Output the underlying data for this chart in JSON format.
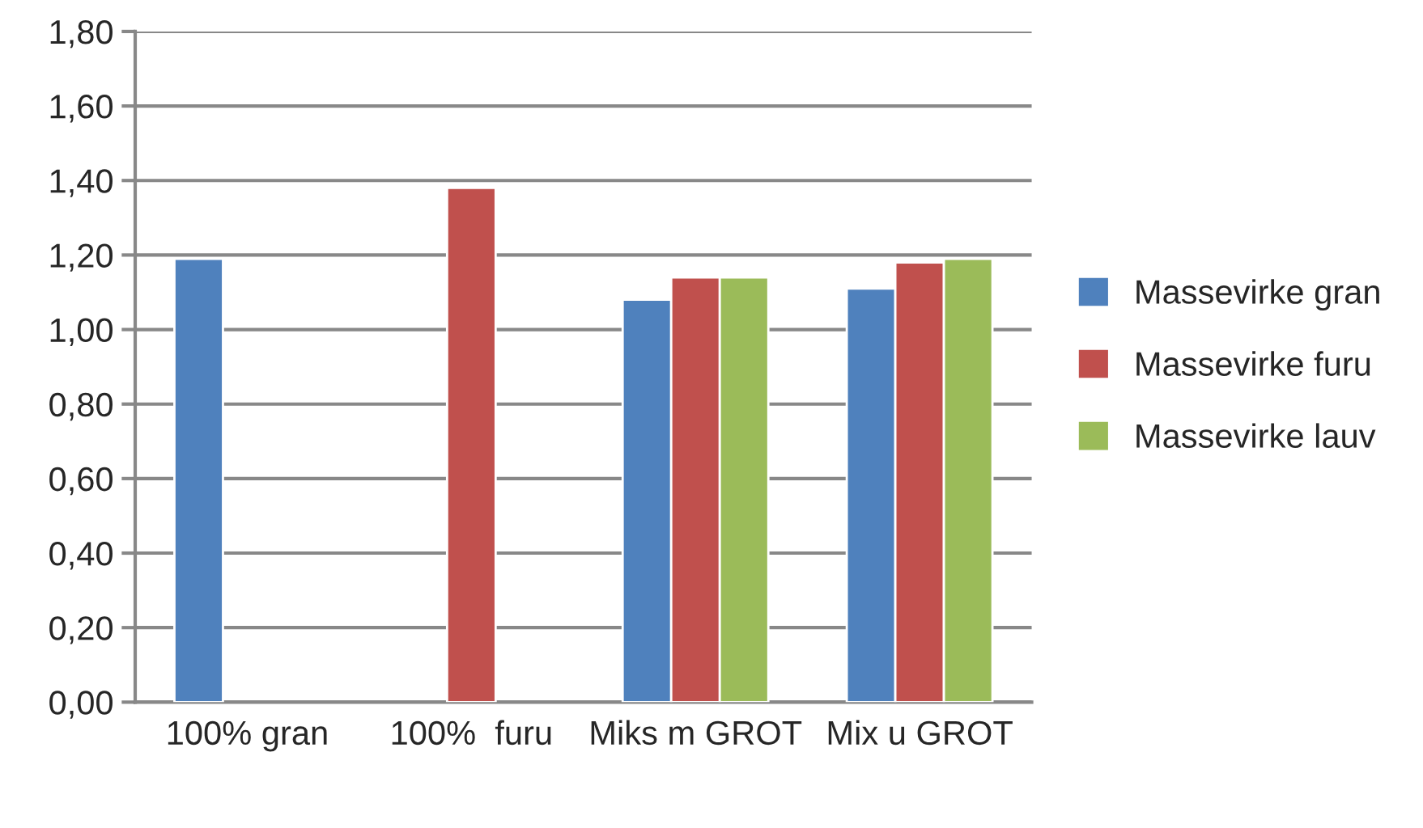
{
  "chart_data": {
    "type": "bar",
    "categories": [
      "100% gran",
      "100%  furu",
      "Miks m GROT",
      "Mix u GROT"
    ],
    "series": [
      {
        "name": "Massevirke gran",
        "color": "#4f81bd",
        "values": [
          1.19,
          null,
          1.08,
          1.11
        ]
      },
      {
        "name": "Massevirke furu",
        "color": "#c0504d",
        "values": [
          null,
          1.38,
          1.14,
          1.18
        ]
      },
      {
        "name": "Massevirke lauv",
        "color": "#9bbb59",
        "values": [
          null,
          null,
          1.14,
          1.19
        ]
      }
    ],
    "ylim": [
      0,
      1.8
    ],
    "yticks": [
      {
        "value": 0,
        "label": "0,00"
      },
      {
        "value": 0.2,
        "label": "0,20"
      },
      {
        "value": 0.4,
        "label": "0,40"
      },
      {
        "value": 0.6,
        "label": "0,60"
      },
      {
        "value": 0.8,
        "label": "0,80"
      },
      {
        "value": 1.0,
        "label": "1,00"
      },
      {
        "value": 1.2,
        "label": "1,20"
      },
      {
        "value": 1.4,
        "label": "1,40"
      },
      {
        "value": 1.6,
        "label": "1,60"
      },
      {
        "value": 1.8,
        "label": "1,80"
      }
    ],
    "grid": "y",
    "legend": "right"
  }
}
